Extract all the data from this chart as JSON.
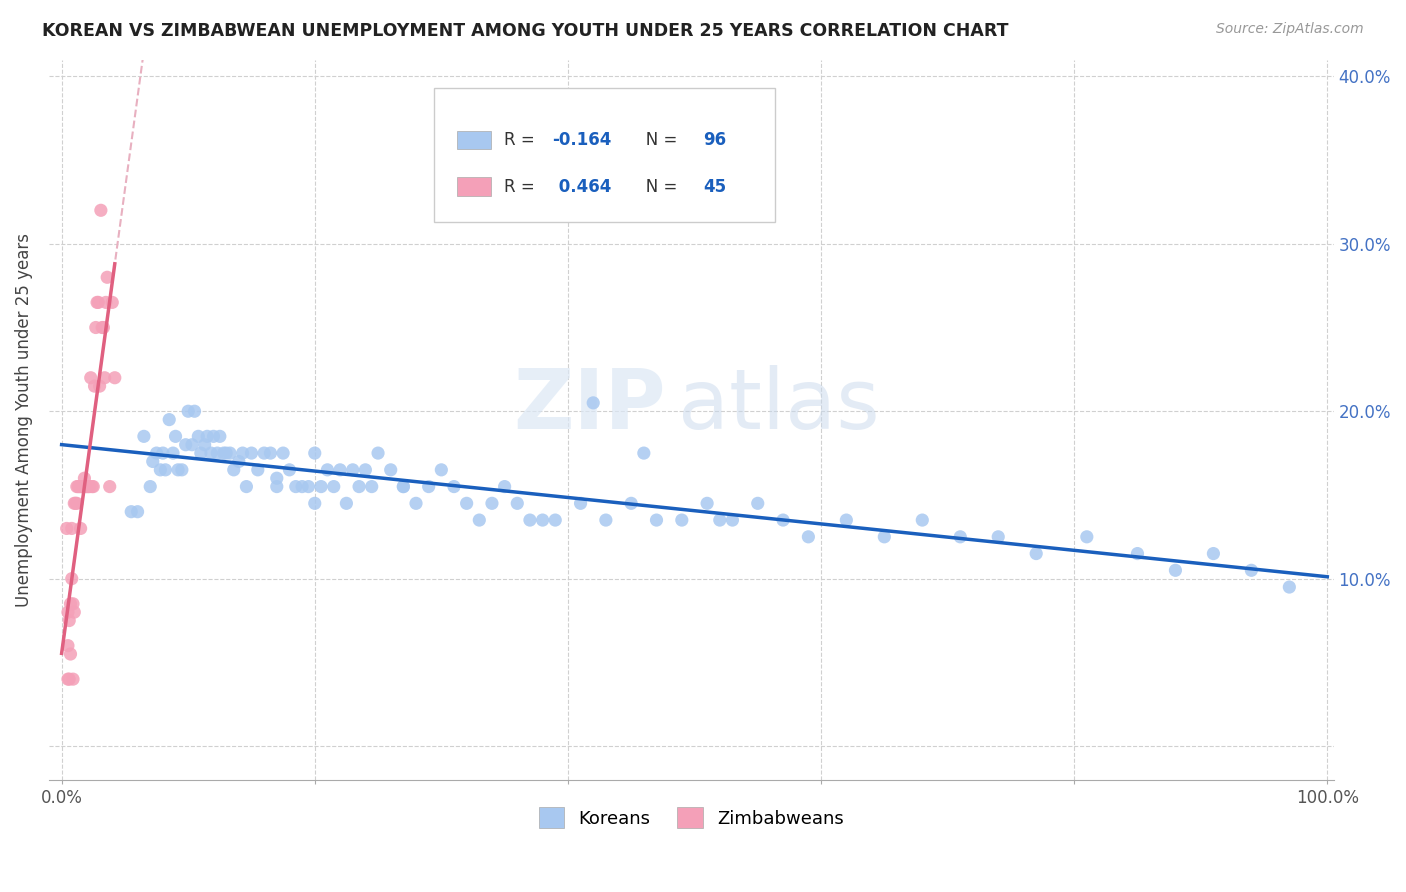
{
  "title": "KOREAN VS ZIMBABWEAN UNEMPLOYMENT AMONG YOUTH UNDER 25 YEARS CORRELATION CHART",
  "source": "Source: ZipAtlas.com",
  "ylabel": "Unemployment Among Youth under 25 years",
  "legend_korean": "Koreans",
  "legend_zimbabwean": "Zimbabweans",
  "korean_R": "-0.164",
  "korean_N": "96",
  "zimbabwean_R": "0.464",
  "zimbabwean_N": "45",
  "watermark_zip": "ZIP",
  "watermark_atlas": "atlas",
  "blue_color": "#a8c8f0",
  "pink_color": "#f4a0b8",
  "trend_blue": "#1a5fbd",
  "trend_pink": "#e06080",
  "trend_dashed_color": "#e8b0c0",
  "xlim": [
    0.0,
    1.0
  ],
  "ylim": [
    0.0,
    0.4
  ],
  "x_left_label": "0.0%",
  "x_right_label": "100.0%",
  "ytick_positions": [
    0.0,
    0.1,
    0.2,
    0.3,
    0.4
  ],
  "ytick_labels": [
    "",
    "10.0%",
    "20.0%",
    "30.0%",
    "40.0%"
  ],
  "korean_x": [
    0.055,
    0.06,
    0.065,
    0.07,
    0.072,
    0.075,
    0.078,
    0.08,
    0.082,
    0.085,
    0.088,
    0.09,
    0.092,
    0.095,
    0.098,
    0.1,
    0.103,
    0.105,
    0.108,
    0.11,
    0.113,
    0.115,
    0.118,
    0.12,
    0.123,
    0.125,
    0.128,
    0.13,
    0.133,
    0.136,
    0.14,
    0.143,
    0.146,
    0.15,
    0.155,
    0.16,
    0.165,
    0.17,
    0.175,
    0.18,
    0.185,
    0.19,
    0.195,
    0.2,
    0.205,
    0.21,
    0.215,
    0.22,
    0.225,
    0.23,
    0.235,
    0.24,
    0.245,
    0.25,
    0.26,
    0.27,
    0.28,
    0.29,
    0.3,
    0.31,
    0.32,
    0.33,
    0.34,
    0.35,
    0.37,
    0.39,
    0.41,
    0.43,
    0.45,
    0.47,
    0.49,
    0.51,
    0.53,
    0.55,
    0.57,
    0.59,
    0.62,
    0.65,
    0.68,
    0.71,
    0.74,
    0.77,
    0.81,
    0.85,
    0.88,
    0.91,
    0.94,
    0.97,
    0.52,
    0.46,
    0.38,
    0.36,
    0.27,
    0.2,
    0.17,
    0.42
  ],
  "korean_y": [
    0.14,
    0.14,
    0.185,
    0.155,
    0.17,
    0.175,
    0.165,
    0.175,
    0.165,
    0.195,
    0.175,
    0.185,
    0.165,
    0.165,
    0.18,
    0.2,
    0.18,
    0.2,
    0.185,
    0.175,
    0.18,
    0.185,
    0.175,
    0.185,
    0.175,
    0.185,
    0.175,
    0.175,
    0.175,
    0.165,
    0.17,
    0.175,
    0.155,
    0.175,
    0.165,
    0.175,
    0.175,
    0.16,
    0.175,
    0.165,
    0.155,
    0.155,
    0.155,
    0.175,
    0.155,
    0.165,
    0.155,
    0.165,
    0.145,
    0.165,
    0.155,
    0.165,
    0.155,
    0.175,
    0.165,
    0.155,
    0.145,
    0.155,
    0.165,
    0.155,
    0.145,
    0.135,
    0.145,
    0.155,
    0.135,
    0.135,
    0.145,
    0.135,
    0.145,
    0.135,
    0.135,
    0.145,
    0.135,
    0.145,
    0.135,
    0.125,
    0.135,
    0.125,
    0.135,
    0.125,
    0.125,
    0.115,
    0.125,
    0.115,
    0.105,
    0.115,
    0.105,
    0.095,
    0.135,
    0.175,
    0.135,
    0.145,
    0.155,
    0.145,
    0.155,
    0.205
  ],
  "zimbabwean_x": [
    0.004,
    0.005,
    0.005,
    0.005,
    0.006,
    0.006,
    0.007,
    0.007,
    0.008,
    0.008,
    0.009,
    0.009,
    0.01,
    0.01,
    0.011,
    0.012,
    0.012,
    0.013,
    0.014,
    0.015,
    0.015,
    0.016,
    0.017,
    0.018,
    0.019,
    0.02,
    0.021,
    0.022,
    0.023,
    0.024,
    0.025,
    0.026,
    0.027,
    0.028,
    0.029,
    0.03,
    0.031,
    0.032,
    0.033,
    0.034,
    0.035,
    0.036,
    0.038,
    0.04,
    0.042
  ],
  "zimbabwean_y": [
    0.13,
    0.06,
    0.08,
    0.04,
    0.075,
    0.04,
    0.055,
    0.085,
    0.1,
    0.13,
    0.04,
    0.085,
    0.08,
    0.145,
    0.145,
    0.145,
    0.155,
    0.155,
    0.155,
    0.13,
    0.155,
    0.155,
    0.155,
    0.16,
    0.155,
    0.155,
    0.155,
    0.155,
    0.22,
    0.155,
    0.155,
    0.215,
    0.25,
    0.265,
    0.265,
    0.215,
    0.32,
    0.25,
    0.25,
    0.22,
    0.265,
    0.28,
    0.155,
    0.265,
    0.22
  ]
}
